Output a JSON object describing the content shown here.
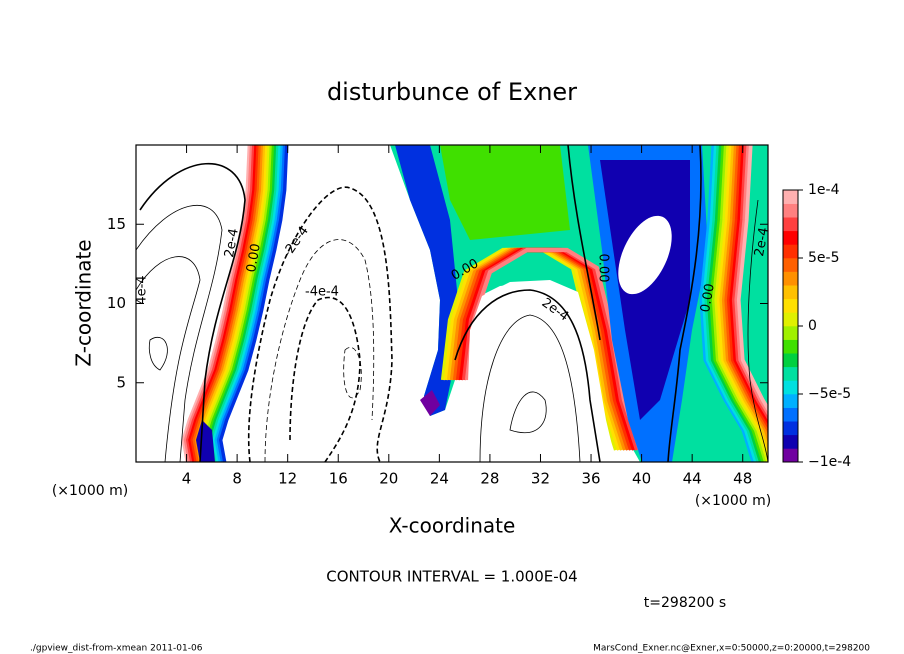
{
  "chart_data": {
    "type": "contour",
    "title": "disturbunce of Exner",
    "x_label": "X-coordinate",
    "y_label": "Z-coordinate",
    "x_unit": "(×1000 m)",
    "y_unit": "(×1000 m)",
    "xlim": [
      0,
      50
    ],
    "ylim": [
      0,
      20
    ],
    "xticks": [
      4,
      8,
      12,
      16,
      20,
      24,
      28,
      32,
      36,
      40,
      44,
      48
    ],
    "yticks": [
      5,
      10,
      15
    ],
    "colorbar": {
      "lim": [
        -0.0001,
        0.0001
      ],
      "ticks": [
        {
          "value": -0.0001,
          "label": "−1e-4"
        },
        {
          "value": -5e-05,
          "label": "−5e-5"
        },
        0,
        {
          "value": 5e-05,
          "label": "5e-5"
        },
        {
          "value": 0.0001,
          "label": "1e-4"
        }
      ],
      "colors": [
        "#7000a0",
        "#1000b0",
        "#0030e0",
        "#0070ff",
        "#00b0ff",
        "#00e0e0",
        "#00e0a0",
        "#00d040",
        "#40e000",
        "#a0f000",
        "#e0f000",
        "#ffe000",
        "#ffc000",
        "#ff9000",
        "#ff6000",
        "#ff3000",
        "#ff0000",
        "#ff4040",
        "#ff8080",
        "#ffb0b0"
      ]
    },
    "contour_labels": [
      "4e-4",
      "2e-4",
      "0.00",
      "-2e-4",
      "-4e-4",
      "0.00",
      "2e-4",
      "0.00",
      "0.00",
      "2e-4"
    ],
    "contour_interval": "CONTOUR INTERVAL = 1.000E-04",
    "time": "t=298200 s",
    "footer_left": "./gpview_dist-from-xmean  2011-01-06",
    "footer_right": "MarsCond_Exner.nc@Exner,x=0:50000,z=0:20000,t=298200"
  }
}
